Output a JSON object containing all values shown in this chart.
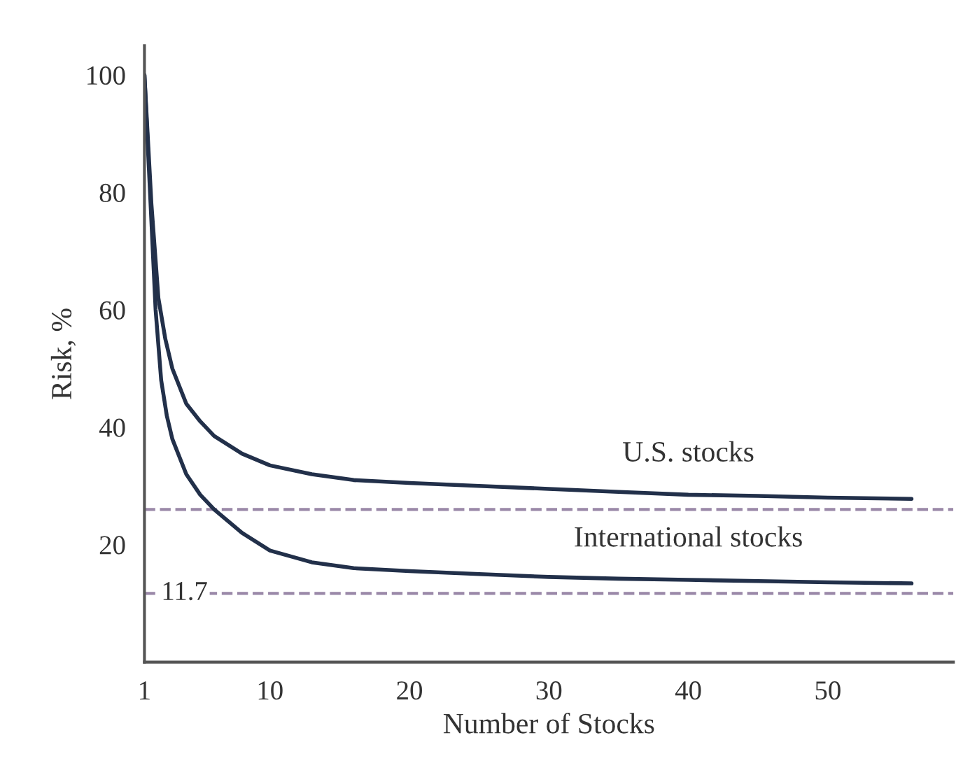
{
  "chart_data": {
    "type": "line",
    "xlabel": "Number of Stocks",
    "ylabel": "Risk, %",
    "xlim": [
      1,
      59
    ],
    "xticks": [
      1,
      10,
      20,
      30,
      40,
      50
    ],
    "ylim": [
      0,
      105
    ],
    "yticks": [
      20,
      40,
      60,
      80,
      100
    ],
    "grid": false,
    "marker": "none",
    "line_style": "solid",
    "series": [
      {
        "name": "U.S. stocks",
        "color": "#22304a",
        "x": [
          1,
          1.5,
          2,
          2.5,
          3,
          4,
          5,
          6,
          8,
          10,
          13,
          16,
          20,
          25,
          30,
          35,
          40,
          45,
          50,
          56
        ],
        "values": [
          100,
          78,
          62,
          55,
          50,
          44,
          41,
          38.5,
          35.5,
          33.5,
          32,
          31,
          30.5,
          30,
          29.5,
          29,
          28.5,
          28.3,
          28,
          27.8
        ]
      },
      {
        "name": "International stocks",
        "color": "#22304a",
        "x": [
          1,
          1.5,
          1.8,
          2.2,
          2.6,
          3,
          4,
          5,
          6,
          7,
          8,
          10,
          13,
          16,
          20,
          25,
          30,
          35,
          40,
          45,
          50,
          56
        ],
        "values": [
          100,
          75,
          60,
          48,
          42,
          38,
          32,
          28.5,
          26,
          24,
          22,
          19,
          17,
          16,
          15.5,
          15,
          14.5,
          14.2,
          14,
          13.8,
          13.6,
          13.4
        ]
      }
    ],
    "ref_lines": [
      {
        "axis": "y",
        "value": 26,
        "color": "#9a88a8",
        "line_style": "dashed"
      },
      {
        "axis": "y",
        "value": 11.7,
        "label": "11.7",
        "color": "#9a88a8",
        "line_style": "dashed"
      }
    ]
  }
}
